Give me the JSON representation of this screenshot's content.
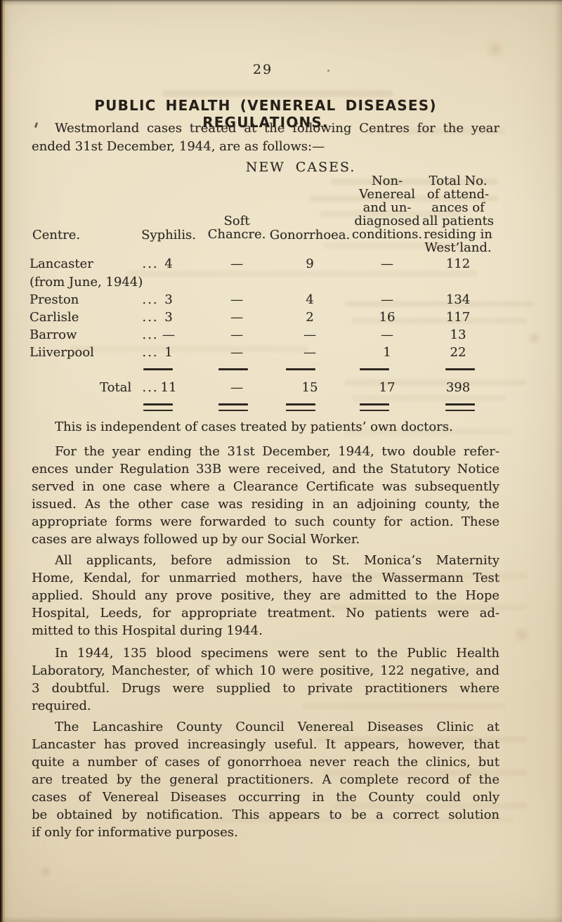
{
  "page": {
    "number": "29",
    "title": "PUBLIC HEALTH (VENEREAL DISEASES) REGULATIONS.",
    "intro_lines": [
      "Westmorland cases treated at the following Centres for the year",
      "ended 31st December, 1944, are as follows:—"
    ]
  },
  "table": {
    "heading": "NEW CASES.",
    "dots": "...",
    "columns": {
      "centre": "Centre.",
      "syphilis": "Syphilis.",
      "soft_chancre_lines": [
        "Soft",
        "Chancre."
      ],
      "gonorrhoea": "Gonorrhoea.",
      "non_venereal_lines": [
        "Non-",
        "Venereal",
        "and un-",
        "diagnosed",
        "conditions."
      ],
      "attendances_lines": [
        "Total No.",
        "of attend-",
        "ances of",
        "all patients",
        "residing in",
        "West’land."
      ]
    },
    "rows": [
      {
        "centre": "Lancaster",
        "note": "(from June, 1944)",
        "syphilis": "4",
        "soft_chancre": "—",
        "gonorrhoea": "9",
        "non_venereal": "—",
        "attendances": "112"
      },
      {
        "centre": "Preston",
        "syphilis": "3",
        "soft_chancre": "—",
        "gonorrhoea": "4",
        "non_venereal": "—",
        "attendances": "134"
      },
      {
        "centre": "Carlisle",
        "syphilis": "3",
        "soft_chancre": "—",
        "gonorrhoea": "2",
        "non_venereal": "16",
        "attendances": "117"
      },
      {
        "centre": "Barrow",
        "syphilis": "—",
        "soft_chancre": "—",
        "gonorrhoea": "—",
        "non_venereal": "—",
        "attendances": "13"
      },
      {
        "centre": "Liiverpool",
        "syphilis": "1",
        "soft_chancre": "—",
        "gonorrhoea": "—",
        "non_venereal": "1",
        "attendances": "22"
      }
    ],
    "total": {
      "label": "Total",
      "syphilis": "11",
      "soft_chancre": "—",
      "gonorrhoea": "15",
      "non_venereal": "17",
      "attendances": "398"
    }
  },
  "paragraphs": {
    "independent": [
      "This is independent of cases treated by patients’ own doctors."
    ],
    "regulation": [
      "For the year ending the 31st December, 1944, two double refer-",
      "ences under Regulation 33B were received, and the Statutory Notice",
      "served in one case where a Clearance Certificate was subsequently",
      "issued. As the other case was residing in an adjoining county, the",
      "appropriate forms were forwarded to such county for action. These",
      "cases are always followed up by our Social Worker."
    ],
    "applicants": [
      "All applicants, before admission to St. Monica’s Maternity",
      "Home, Kendal, for unmarried mothers, have the Wassermann Test",
      "applied. Should any prove positive, they are admitted to the Hope",
      "Hospital, Leeds, for appropriate treatment. No patients were ad-",
      "mitted to this Hospital during 1944."
    ],
    "specimens": [
      "In 1944, 135 blood specimens were sent to the Public Health",
      "Laboratory, Manchester, of which 10 were positive, 122 negative, and",
      "3 doubtful. Drugs were supplied to private practitioners where",
      "required."
    ],
    "clinic": [
      "The Lancashire County Council Venereal Diseases Clinic at",
      "Lancaster has proved increasingly useful. It appears, however, that",
      "quite a number of cases of gonorrhoea never reach the clinics, but",
      "are treated by the general practitioners. A complete record of the",
      "cases of Venereal Diseases occurring in the County could only",
      "be obtained by notification. This appears to be a correct solution",
      "if only for informative purposes."
    ]
  }
}
